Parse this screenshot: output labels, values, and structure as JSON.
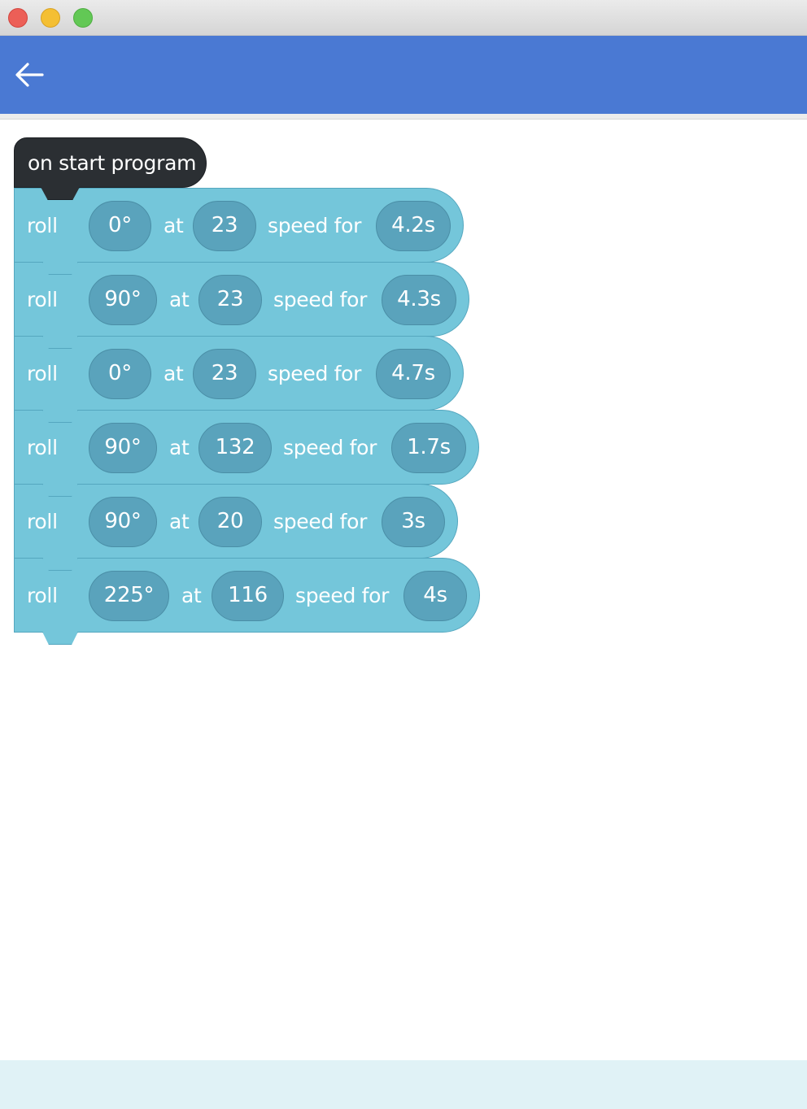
{
  "app": {
    "window_controls": [
      "close-icon",
      "minimize-icon",
      "maximize-icon"
    ],
    "back_icon": "arrow-left-icon",
    "colors": {
      "appbar": "#4a79d3",
      "hat_block": "#2b2f33",
      "roll_block": "#74c6da",
      "pill": "#5aa3bc",
      "bottom_bar": "#e0f2f6"
    }
  },
  "program": {
    "start_label": "on start program",
    "blocks": [
      {
        "verb": "roll",
        "heading": "0°",
        "at": "at",
        "speed": "23",
        "speed_for": "speed for",
        "duration": "4.2s"
      },
      {
        "verb": "roll",
        "heading": "90°",
        "at": "at",
        "speed": "23",
        "speed_for": "speed for",
        "duration": "4.3s"
      },
      {
        "verb": "roll",
        "heading": "0°",
        "at": "at",
        "speed": "23",
        "speed_for": "speed for",
        "duration": "4.7s"
      },
      {
        "verb": "roll",
        "heading": "90°",
        "at": "at",
        "speed": "132",
        "speed_for": "speed for",
        "duration": "1.7s"
      },
      {
        "verb": "roll",
        "heading": "90°",
        "at": "at",
        "speed": "20",
        "speed_for": "speed for",
        "duration": "3s"
      },
      {
        "verb": "roll",
        "heading": "225°",
        "at": "at",
        "speed": "116",
        "speed_for": "speed for",
        "duration": "4s"
      }
    ]
  }
}
